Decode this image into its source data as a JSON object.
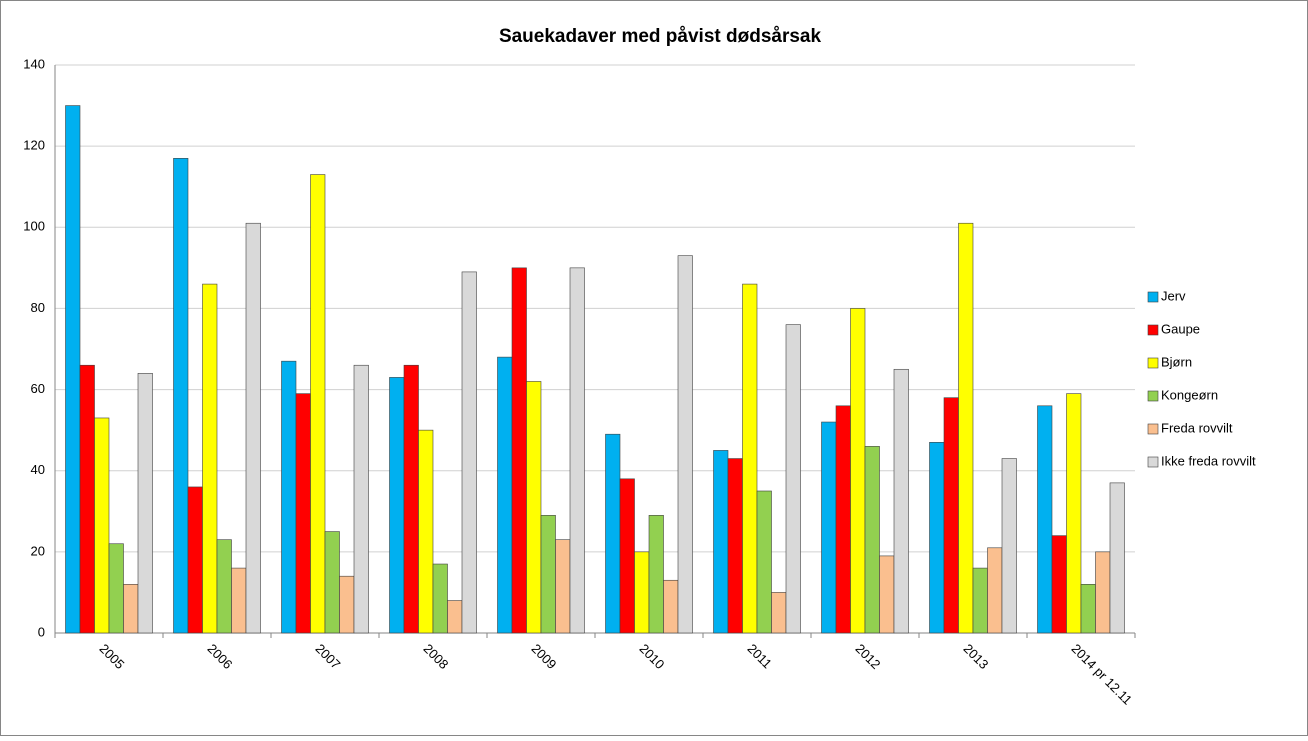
{
  "chart_data": {
    "type": "bar",
    "title": "Sauekadaver med påvist dødsårsak",
    "categories": [
      "2005",
      "2006",
      "2007",
      "2008",
      "2009",
      "2010",
      "2011",
      "2012",
      "2013",
      "2014 pr 12.11"
    ],
    "series": [
      {
        "name": "Jerv",
        "color": "#00b0f0",
        "values": [
          130,
          117,
          67,
          63,
          68,
          49,
          45,
          52,
          47,
          56
        ]
      },
      {
        "name": "Gaupe",
        "color": "#ff0000",
        "values": [
          66,
          36,
          59,
          66,
          90,
          38,
          43,
          56,
          58,
          24
        ]
      },
      {
        "name": "Bjørn",
        "color": "#ffff00",
        "values": [
          53,
          86,
          113,
          50,
          62,
          20,
          86,
          80,
          101,
          59
        ]
      },
      {
        "name": "Kongeørn",
        "color": "#92d050",
        "values": [
          22,
          23,
          25,
          17,
          29,
          29,
          35,
          46,
          16,
          12
        ]
      },
      {
        "name": "Freda rovvilt",
        "color": "#fabf8f",
        "values": [
          12,
          16,
          14,
          8,
          23,
          13,
          10,
          19,
          21,
          20
        ]
      },
      {
        "name": "Ikke freda rovvilt",
        "color": "#d9d9d9",
        "values": [
          64,
          101,
          66,
          89,
          90,
          93,
          76,
          65,
          43,
          37
        ]
      }
    ],
    "ylim": [
      0,
      140
    ],
    "yticks": [
      0,
      20,
      40,
      60,
      80,
      100,
      120,
      140
    ],
    "grid": true,
    "legend": "right"
  }
}
